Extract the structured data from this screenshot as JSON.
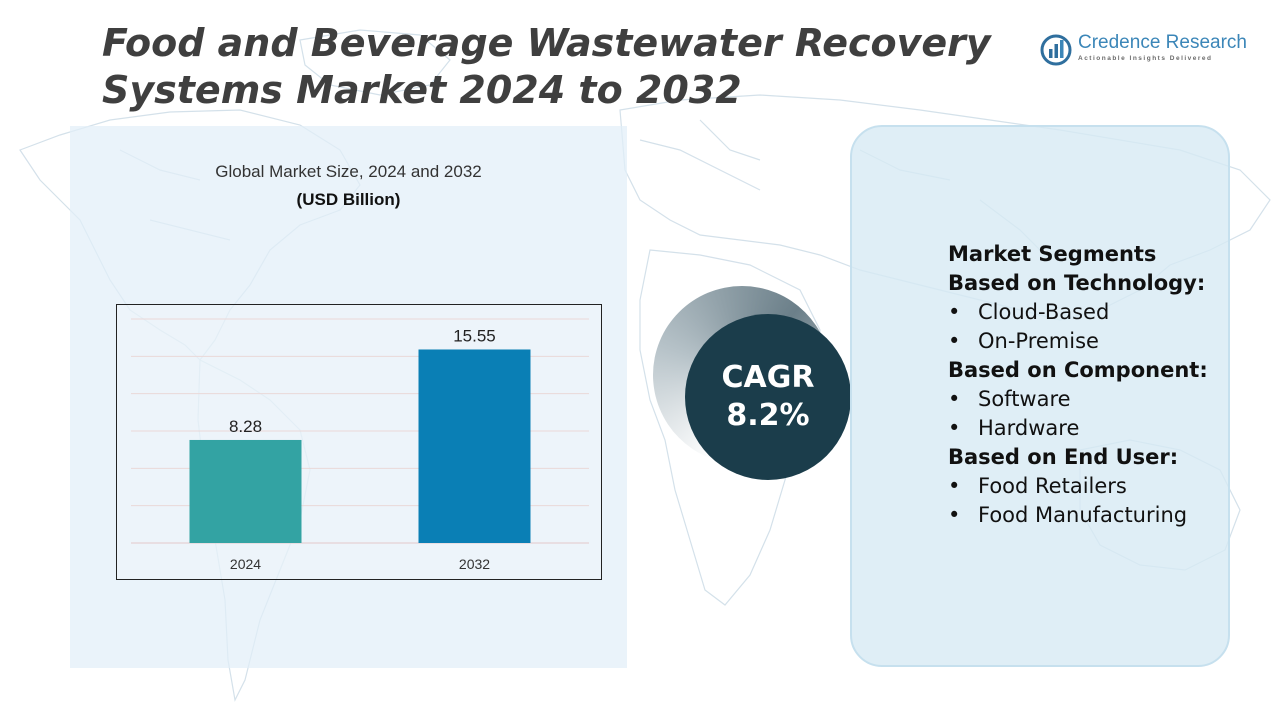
{
  "title": "Food and Beverage Wastewater Recovery Systems Market  2024 to 2032",
  "logo": {
    "name": "Credence Research",
    "tagline": "Actionable Insights Delivered",
    "icon": "credence-logo-icon"
  },
  "cagr": {
    "label": "CAGR",
    "value": "8.2%"
  },
  "segments": {
    "title": "Market Segments",
    "groups": [
      {
        "heading": "Based on Technology:",
        "items": [
          "Cloud-Based",
          "On-Premise"
        ]
      },
      {
        "heading": "Based on Component:",
        "items": [
          "Software",
          "Hardware"
        ]
      },
      {
        "heading": "Based on End User:",
        "items": [
          "Food Retailers",
          "Food Manufacturing"
        ]
      }
    ]
  },
  "colors": {
    "bar_2024": "#33a3a3",
    "bar_2032": "#0a7fb5",
    "cagr_circle": "#1b3d4b",
    "title": "#3f3f3f"
  },
  "chart_data": {
    "type": "bar",
    "title": "Global Market Size, 2024 and 2032",
    "unit": "(USD Billion)",
    "categories": [
      "2024",
      "2032"
    ],
    "values": [
      8.28,
      15.55
    ],
    "value_labels": [
      "8.28",
      "15.55"
    ],
    "ylim": [
      0,
      18
    ],
    "grid": true,
    "xlabel": "",
    "ylabel": ""
  }
}
